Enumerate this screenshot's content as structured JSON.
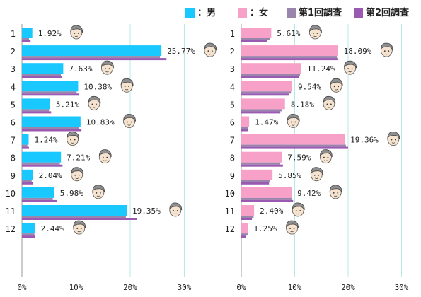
{
  "legend": [
    {
      "label": "：男",
      "color": "#19c8ff"
    },
    {
      "label": "：女",
      "color": "#f7a0c8"
    },
    {
      "label": "第1回調査",
      "color": "#9a86ad"
    },
    {
      "label": "第2回調査",
      "color": "#9b5ab2"
    }
  ],
  "chart_data": [
    {
      "type": "bar",
      "orientation": "horizontal",
      "categories": [
        "1",
        "2",
        "3",
        "4",
        "5",
        "6",
        "7",
        "8",
        "9",
        "10",
        "11",
        "12"
      ],
      "series": [
        {
          "name": "：男",
          "color": "#19c8ff",
          "values": [
            1.92,
            25.77,
            7.63,
            10.38,
            5.21,
            10.83,
            1.24,
            7.21,
            2.04,
            5.98,
            19.35,
            2.44
          ],
          "labels": [
            "1.92%",
            "25.77%",
            "7.63%",
            "10.38%",
            "5.21%",
            "10.83%",
            "1.24%",
            "7.21%",
            "2.04%",
            "5.98%",
            "19.35%",
            "2.44%"
          ]
        },
        {
          "name": "第1回調査",
          "color": "#9a86ad",
          "values": [
            1.3,
            25.5,
            7.2,
            10.1,
            5.0,
            10.6,
            1.0,
            7.0,
            1.8,
            5.7,
            19.2,
            2.3
          ]
        },
        {
          "name": "第2回調査",
          "color": "#9b5ab2",
          "values": [
            1.6,
            26.7,
            7.4,
            10.6,
            5.4,
            11.0,
            1.3,
            7.5,
            2.1,
            6.4,
            21.2,
            2.4
          ]
        }
      ],
      "xlim": [
        0,
        30
      ],
      "xticks": [
        "0%",
        "10%",
        "20%",
        "30%"
      ],
      "grid": true
    },
    {
      "type": "bar",
      "orientation": "horizontal",
      "categories": [
        "1",
        "2",
        "3",
        "4",
        "5",
        "6",
        "7",
        "8",
        "9",
        "10",
        "11",
        "12"
      ],
      "series": [
        {
          "name": "：女",
          "color": "#f7a0c8",
          "values": [
            5.61,
            18.09,
            11.24,
            9.54,
            8.18,
            1.47,
            19.36,
            7.59,
            5.85,
            9.42,
            2.4,
            1.25
          ],
          "labels": [
            "5.61%",
            "18.09%",
            "11.24%",
            "9.54%",
            "8.18%",
            "1.47%",
            "19.36%",
            "7.59%",
            "5.85%",
            "9.42%",
            "2.40%",
            "1.25%"
          ]
        },
        {
          "name": "第1回調査",
          "color": "#9a86ad",
          "values": [
            5.4,
            17.9,
            11.0,
            9.3,
            7.6,
            1.2,
            19.6,
            7.3,
            5.4,
            9.5,
            2.3,
            1.2
          ]
        },
        {
          "name": "第2回調査",
          "color": "#9b5ab2",
          "values": [
            4.8,
            18.0,
            10.8,
            9.0,
            7.3,
            1.2,
            20.0,
            7.8,
            5.2,
            9.7,
            2.0,
            0.9
          ]
        }
      ],
      "xlim": [
        0,
        30
      ],
      "xticks": [
        "0%",
        "10%",
        "20%",
        "30%"
      ],
      "grid": true
    }
  ]
}
